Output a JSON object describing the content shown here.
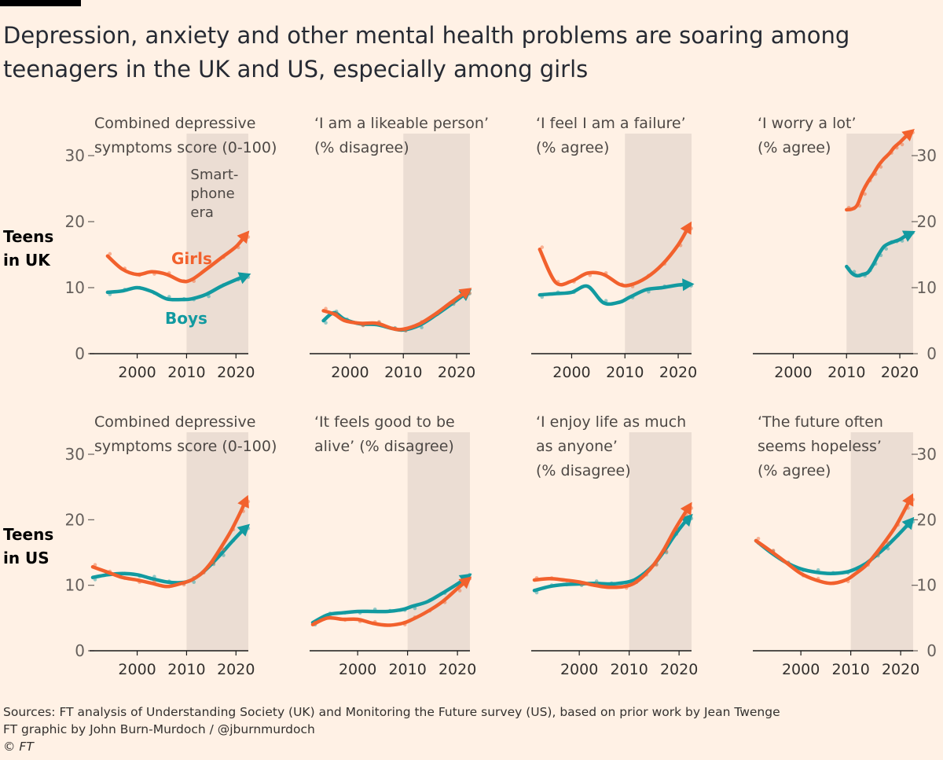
{
  "title": "Depression, anxiety and other mental health problems are soaring among teenagers in the UK and US, especially among girls",
  "rows": [
    {
      "label_line1": "Teens",
      "label_line2": "in UK"
    },
    {
      "label_line1": "Teens",
      "label_line2": "in US"
    }
  ],
  "shading_label": [
    "Smart-",
    "phone",
    "era"
  ],
  "series_labels": {
    "girls": "Girls",
    "boys": "Boys"
  },
  "colors": {
    "girls": "#f2612d",
    "boys": "#129aa0",
    "shade": "#ebddd3",
    "axis": "#66605c",
    "background": "#fff1e5"
  },
  "x_ticks": [
    "2000",
    "2010",
    "2020"
  ],
  "chart_data": [
    {
      "type": "line",
      "row": "UK",
      "col": 0,
      "title_lines": [
        "Combined depressive",
        "symptoms score (0-100)"
      ],
      "x_range": [
        1991,
        2022.5
      ],
      "ylim": [
        0,
        30
      ],
      "y_ticks": [
        0,
        10,
        20,
        30
      ],
      "y_axis_side": "left",
      "shaded_period": [
        2010,
        2022.5
      ],
      "series": [
        {
          "name": "Girls",
          "x": [
            1994,
            1997,
            2000,
            2003,
            2006,
            2009,
            2011,
            2014,
            2017,
            2020,
            2022
          ],
          "y": [
            14.8,
            12.8,
            12.0,
            12.4,
            12.0,
            11.0,
            11.2,
            12.8,
            14.5,
            16.2,
            18.0
          ]
        },
        {
          "name": "Boys",
          "x": [
            1994,
            1997,
            2000,
            2003,
            2006,
            2009,
            2011,
            2014,
            2017,
            2020,
            2022
          ],
          "y": [
            9.3,
            9.5,
            10.0,
            9.4,
            8.3,
            8.2,
            8.3,
            9.0,
            10.2,
            11.2,
            11.8
          ]
        }
      ]
    },
    {
      "type": "line",
      "row": "UK",
      "col": 1,
      "title_lines": [
        "‘I am a likeable person’",
        "(% disagree)"
      ],
      "x_range": [
        1993,
        2022.5
      ],
      "ylim": [
        0,
        30
      ],
      "y_ticks": [],
      "y_axis_side": "none",
      "shaded_period": [
        2010,
        2022.5
      ],
      "series": [
        {
          "name": "Girls",
          "x": [
            1995,
            1997,
            1999,
            2002,
            2005,
            2008,
            2010,
            2013,
            2016,
            2019,
            2022
          ],
          "y": [
            6.5,
            6.0,
            5.0,
            4.6,
            4.6,
            3.8,
            3.7,
            4.5,
            6.0,
            7.8,
            9.5
          ]
        },
        {
          "name": "Boys",
          "x": [
            1995,
            1997,
            1999,
            2002,
            2005,
            2008,
            2010,
            2013,
            2016,
            2019,
            2022
          ],
          "y": [
            5.0,
            6.2,
            5.2,
            4.5,
            4.4,
            3.8,
            3.6,
            4.3,
            5.8,
            7.5,
            9.3
          ]
        }
      ]
    },
    {
      "type": "line",
      "row": "UK",
      "col": 2,
      "title_lines": [
        "‘I feel I am a failure’",
        "(% agree)"
      ],
      "x_range": [
        1993,
        2022.5
      ],
      "ylim": [
        0,
        30
      ],
      "y_ticks": [],
      "y_axis_side": "none",
      "shaded_period": [
        2010,
        2022.5
      ],
      "series": [
        {
          "name": "Girls",
          "x": [
            1994,
            1997,
            2000,
            2003,
            2006,
            2009,
            2011,
            2014,
            2017,
            2020,
            2022
          ],
          "y": [
            15.8,
            10.8,
            11.0,
            12.2,
            12.0,
            10.5,
            10.4,
            11.5,
            13.5,
            16.5,
            19.3
          ]
        },
        {
          "name": "Boys",
          "x": [
            1994,
            1997,
            2000,
            2003,
            2006,
            2009,
            2011,
            2014,
            2017,
            2020,
            2022
          ],
          "y": [
            8.9,
            9.1,
            9.3,
            10.2,
            7.7,
            7.8,
            8.6,
            9.7,
            10.0,
            10.4,
            10.5
          ]
        }
      ]
    },
    {
      "type": "line",
      "row": "UK",
      "col": 3,
      "title_lines": [
        "‘I worry a lot’",
        "(% agree)"
      ],
      "x_range": [
        1993,
        2022.5
      ],
      "ylim": [
        0,
        30
      ],
      "y_ticks": [
        0,
        10,
        20,
        30
      ],
      "y_axis_side": "right",
      "shaded_period": [
        2010,
        2022.5
      ],
      "series": [
        {
          "name": "Girls",
          "x": [
            2010,
            2011,
            2012,
            2013,
            2014,
            2015,
            2016,
            2017,
            2018,
            2019,
            2020,
            2021,
            2022
          ],
          "y": [
            21.8,
            21.9,
            22.5,
            24.5,
            26.0,
            27.2,
            28.5,
            29.5,
            30.3,
            31.3,
            32.0,
            32.8,
            33.5
          ]
        },
        {
          "name": "Boys",
          "x": [
            2010,
            2011,
            2012,
            2013,
            2014,
            2015,
            2016,
            2017,
            2018,
            2019,
            2020,
            2021,
            2022
          ],
          "y": [
            13.2,
            12.2,
            11.8,
            12.0,
            12.3,
            13.5,
            15.0,
            16.2,
            16.7,
            17.0,
            17.3,
            17.8,
            18.2
          ]
        }
      ]
    },
    {
      "type": "line",
      "row": "US",
      "col": 0,
      "title_lines": [
        "Combined depressive",
        "symptoms score (0-100)"
      ],
      "x_range": [
        1991,
        2022.5
      ],
      "ylim": [
        0,
        30
      ],
      "y_ticks": [
        0,
        10,
        20,
        30
      ],
      "y_axis_side": "left",
      "shaded_period": [
        2010,
        2022.5
      ],
      "series": [
        {
          "name": "Girls",
          "x": [
            1991,
            1994,
            1997,
            2000,
            2003,
            2006,
            2009,
            2011,
            2013,
            2015,
            2017,
            2019,
            2021,
            2022
          ],
          "y": [
            12.8,
            12.0,
            11.2,
            10.8,
            10.3,
            9.8,
            10.3,
            10.8,
            11.8,
            13.5,
            15.8,
            18.3,
            21.3,
            23.0
          ]
        },
        {
          "name": "Boys",
          "x": [
            1991,
            1994,
            1997,
            2000,
            2003,
            2006,
            2009,
            2011,
            2013,
            2015,
            2017,
            2019,
            2021,
            2022
          ],
          "y": [
            11.2,
            11.6,
            11.8,
            11.6,
            11.0,
            10.5,
            10.4,
            10.8,
            11.8,
            13.2,
            14.8,
            16.5,
            18.1,
            18.8
          ]
        }
      ]
    },
    {
      "type": "line",
      "row": "US",
      "col": 1,
      "title_lines": [
        "‘It feels good to be",
        "alive’ (% disagree)"
      ],
      "x_range": [
        1991,
        2022.5
      ],
      "ylim": [
        0,
        30
      ],
      "y_ticks": [],
      "y_axis_side": "none",
      "shaded_period": [
        2010,
        2022.5
      ],
      "series": [
        {
          "name": "Girls",
          "x": [
            1991,
            1994,
            1997,
            2000,
            2003,
            2006,
            2009,
            2011,
            2014,
            2017,
            2020,
            2022
          ],
          "y": [
            4.0,
            5.0,
            4.8,
            4.8,
            4.2,
            3.9,
            4.2,
            4.8,
            6.0,
            7.5,
            9.5,
            10.8
          ]
        },
        {
          "name": "Boys",
          "x": [
            1991,
            1994,
            1997,
            2000,
            2003,
            2006,
            2009,
            2011,
            2014,
            2017,
            2020,
            2022
          ],
          "y": [
            4.3,
            5.5,
            5.8,
            6.0,
            6.0,
            6.0,
            6.3,
            6.8,
            7.5,
            8.8,
            10.2,
            11.3
          ]
        }
      ]
    },
    {
      "type": "line",
      "row": "US",
      "col": 2,
      "title_lines": [
        "‘I enjoy life as much",
        "as anyone’",
        "(% disagree)"
      ],
      "x_range": [
        1991,
        2022.5
      ],
      "ylim": [
        0,
        30
      ],
      "y_ticks": [],
      "y_axis_side": "none",
      "shaded_period": [
        2010,
        2022.5
      ],
      "series": [
        {
          "name": "Girls",
          "x": [
            1991,
            1994,
            1997,
            2000,
            2003,
            2006,
            2009,
            2011,
            2013,
            2015,
            2017,
            2019,
            2021,
            2022
          ],
          "y": [
            10.8,
            11.0,
            10.8,
            10.5,
            10.0,
            9.7,
            9.8,
            10.3,
            11.5,
            13.2,
            15.5,
            18.3,
            20.8,
            22.0
          ]
        },
        {
          "name": "Boys",
          "x": [
            1991,
            1994,
            1997,
            2000,
            2003,
            2006,
            2009,
            2011,
            2013,
            2015,
            2017,
            2019,
            2021,
            2022
          ],
          "y": [
            9.2,
            9.8,
            10.1,
            10.2,
            10.3,
            10.2,
            10.4,
            10.8,
            11.8,
            13.2,
            15.2,
            17.5,
            19.5,
            20.3
          ]
        }
      ]
    },
    {
      "type": "line",
      "row": "US",
      "col": 3,
      "title_lines": [
        "‘The future often",
        "seems hopeless’",
        "(% agree)"
      ],
      "x_range": [
        1991,
        2022.5
      ],
      "ylim": [
        0,
        30
      ],
      "y_ticks": [
        0,
        10,
        20,
        30
      ],
      "y_axis_side": "right",
      "shaded_period": [
        2010,
        2022.5
      ],
      "series": [
        {
          "name": "Girls",
          "x": [
            1991,
            1994,
            1997,
            2000,
            2003,
            2006,
            2009,
            2011,
            2013,
            2015,
            2017,
            2019,
            2021,
            2022
          ],
          "y": [
            16.8,
            15.2,
            13.5,
            11.8,
            10.8,
            10.3,
            10.8,
            11.8,
            13.0,
            14.8,
            16.8,
            19.0,
            21.8,
            23.3
          ]
        },
        {
          "name": "Boys",
          "x": [
            1991,
            1994,
            1997,
            2000,
            2003,
            2006,
            2009,
            2011,
            2013,
            2015,
            2017,
            2019,
            2021,
            2022
          ],
          "y": [
            16.8,
            15.0,
            13.5,
            12.5,
            12.0,
            11.8,
            12.0,
            12.5,
            13.3,
            14.5,
            15.8,
            17.3,
            18.9,
            19.8
          ]
        }
      ]
    }
  ],
  "source_lines": [
    "Sources: FT analysis of Understanding Society (UK) and Monitoring the Future survey (US), based on prior work by Jean Twenge",
    "FT graphic by John Burn-Murdoch / @jburnmurdoch"
  ],
  "copyright": "© FT"
}
